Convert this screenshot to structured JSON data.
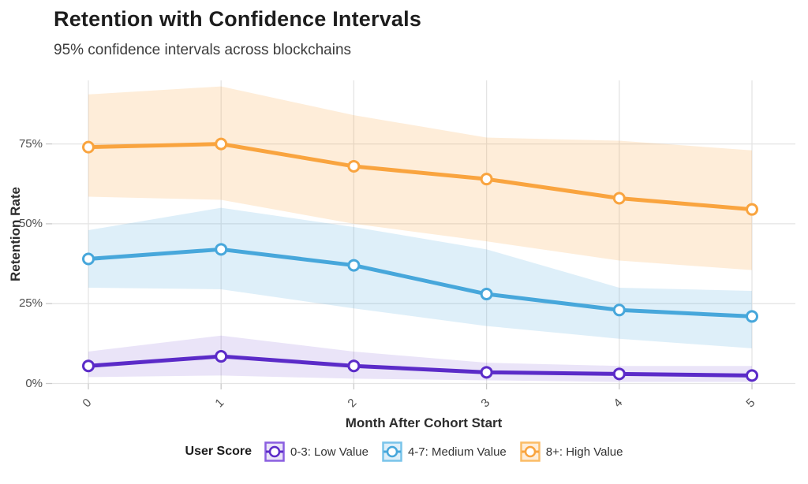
{
  "page": {
    "title": "Retention with Confidence Intervals",
    "subtitle": "95% confidence intervals across blockchains"
  },
  "chart_data": {
    "type": "line",
    "title": "Retention with Confidence Intervals",
    "subtitle": "95% confidence intervals across blockchains",
    "xlabel": "Month After Cohort Start",
    "ylabel": "Retention Rate",
    "x": [
      0,
      1,
      2,
      3,
      4,
      5
    ],
    "x_tick_labels": [
      "0",
      "1",
      "2",
      "3",
      "4",
      "5"
    ],
    "y_ticks": [
      0,
      25,
      50,
      75
    ],
    "y_tick_labels": [
      "0%",
      "25%",
      "50%",
      "75%"
    ],
    "ylim": [
      0,
      95
    ],
    "grid": true,
    "band_meaning": "95% confidence interval",
    "legend": {
      "title": "User Score",
      "position": "bottom"
    },
    "colors": {
      "grid": "#E4E4E4",
      "tick": "#C9C9C9"
    },
    "series": [
      {
        "name": "0-3: Low Value",
        "slug": "low-value",
        "values": [
          5.5,
          8.5,
          5.5,
          3.5,
          3,
          2.5
        ],
        "ci_upper": [
          10,
          15,
          10,
          6.5,
          5.5,
          5.5
        ],
        "ci_lower": [
          2,
          2.5,
          1.5,
          1,
          0.5,
          0.5
        ],
        "color": "#5B2BC8",
        "band_color": "rgba(91,43,200,0.13)",
        "key_border": "#8A5FE0"
      },
      {
        "name": "4-7: Medium Value",
        "slug": "medium-value",
        "values": [
          39,
          42,
          37,
          28,
          23,
          21
        ],
        "ci_upper": [
          48,
          55,
          49,
          42,
          30,
          29
        ],
        "ci_lower": [
          30,
          29.5,
          23.5,
          18,
          14,
          11
        ],
        "color": "#47A7DB",
        "band_color": "rgba(71,167,219,0.18)",
        "key_border": "#79C4EA"
      },
      {
        "name": "8+: High Value",
        "slug": "high-value",
        "values": [
          74,
          75,
          68,
          64,
          58,
          54.5
        ],
        "ci_upper": [
          90.5,
          93,
          84,
          77,
          76,
          73
        ],
        "ci_lower": [
          58.5,
          57.5,
          50,
          44.5,
          38.5,
          35.5
        ],
        "color": "#F9A43F",
        "band_color": "rgba(249,164,63,0.20)",
        "key_border": "#FBBC66"
      }
    ]
  }
}
